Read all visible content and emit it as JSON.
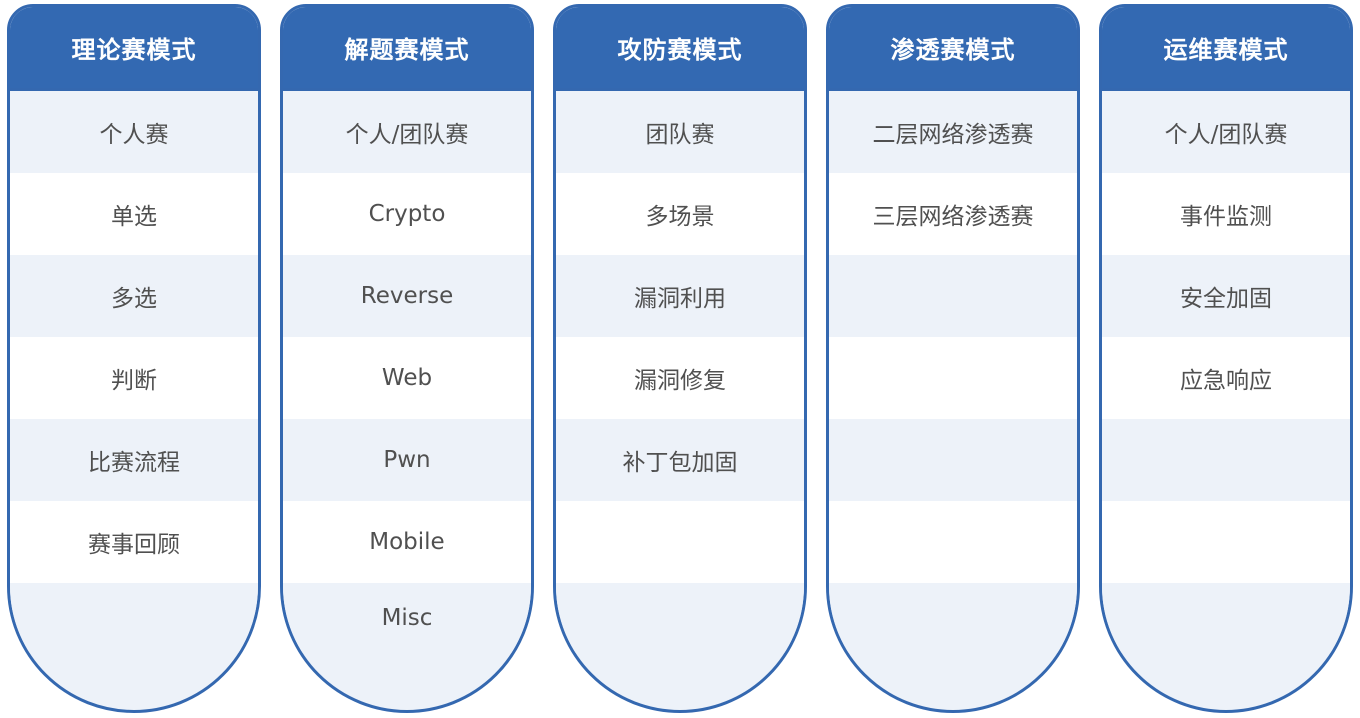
{
  "colors": {
    "header": "#3369b2",
    "border": "#3468b0",
    "stripe": "#edf2f9",
    "text": "#505050"
  },
  "columns": [
    {
      "title": "理论赛模式",
      "items": [
        "个人赛",
        "单选",
        "多选",
        "判断",
        "比赛流程",
        "赛事回顾",
        ""
      ]
    },
    {
      "title": "解题赛模式",
      "items": [
        "个人/团队赛",
        "Crypto",
        "Reverse",
        "Web",
        "Pwn",
        "Mobile",
        "Misc"
      ]
    },
    {
      "title": "攻防赛模式",
      "items": [
        "团队赛",
        "多场景",
        "漏洞利用",
        "漏洞修复",
        "补丁包加固",
        "",
        ""
      ]
    },
    {
      "title": "渗透赛模式",
      "items": [
        "二层网络渗透赛",
        "三层网络渗透赛",
        "",
        "",
        "",
        "",
        ""
      ]
    },
    {
      "title": "运维赛模式",
      "items": [
        "个人/团队赛",
        "事件监测",
        "安全加固",
        "应急响应",
        "",
        "",
        ""
      ]
    }
  ]
}
